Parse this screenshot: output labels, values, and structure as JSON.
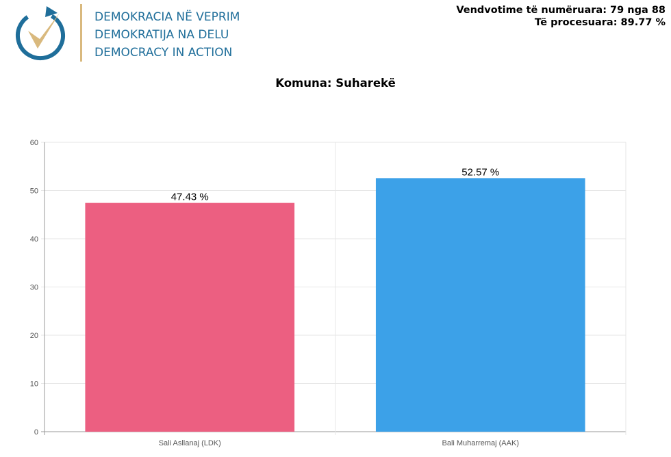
{
  "header": {
    "org_lines": [
      "DEMOKRACIA NË VEPRIM",
      "DEMOKRATIJA NA DELU",
      "DEMOCRACY IN ACTION"
    ],
    "stats": {
      "counted": "Vendvotime të numëruara: 79 nga 88",
      "processed": "Të procesuara: 89.77 %"
    },
    "colors": {
      "brand_blue": "#1f6e9a",
      "brand_gold": "#d9b97e"
    }
  },
  "chart_data": {
    "type": "bar",
    "title": "Komuna: Suharekë",
    "categories": [
      "Sali Asllanaj (LDK)",
      "Bali Muharremaj (AAK)"
    ],
    "values": [
      47.43,
      52.57
    ],
    "data_labels": [
      "47.43 %",
      "52.57 %"
    ],
    "colors": [
      "#ec5f81",
      "#3ca1e8"
    ],
    "ylim": [
      0,
      60
    ],
    "yticks": [
      0,
      10,
      20,
      30,
      40,
      50,
      60
    ],
    "grid": true,
    "legend": false
  }
}
